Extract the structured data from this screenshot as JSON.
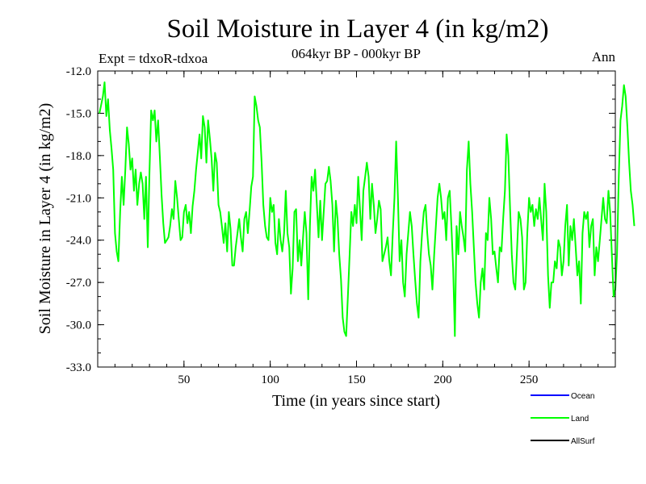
{
  "colors": {
    "background": "#ffffff",
    "axis": "#000000",
    "ocean": "#0000ff",
    "land": "#00ff00",
    "allsurf": "#000000"
  },
  "chart_data": {
    "type": "line",
    "title": "Soil Moisture in Layer 4 (in kg/m2)",
    "subtitle": "064kyr BP - 000kyr BP",
    "left_annotation": "Expt = tdxoR-tdxoa",
    "right_annotation": "Ann",
    "xlabel": "Time (in years since start)",
    "ylabel": "Soil Moisture in Layer 4 (in kg/m2)",
    "xlim": [
      0,
      300
    ],
    "ylim": [
      -33.0,
      -12.0
    ],
    "x_ticks": [
      50,
      100,
      150,
      200,
      250
    ],
    "y_ticks": [
      -12.0,
      -15.0,
      -18.0,
      -21.0,
      -24.0,
      -27.0,
      -30.0,
      -33.0
    ],
    "y_tick_labels": [
      "-12.0",
      "-15.0",
      "-18.0",
      "-21.0",
      "-24.0",
      "-27.0",
      "-30.0",
      "-33.0"
    ],
    "legend": [
      {
        "name": "Ocean",
        "color": "#0000ff"
      },
      {
        "name": "Land",
        "color": "#00ff00"
      },
      {
        "name": "AllSurf",
        "color": "#000000"
      }
    ],
    "series": [
      {
        "name": "Land",
        "color": "#00ff00",
        "x_start": 1,
        "x_step": 1,
        "y": [
          -15.0,
          -14.4,
          -13.8,
          -12.8,
          -15.2,
          -14.0,
          -16.2,
          -17.5,
          -19.0,
          -23.5,
          -24.8,
          -25.5,
          -22.0,
          -19.5,
          -21.5,
          -19.0,
          -16.0,
          -17.2,
          -19.0,
          -18.2,
          -20.5,
          -19.0,
          -21.5,
          -20.0,
          -19.2,
          -20.0,
          -22.5,
          -19.5,
          -24.5,
          -19.2,
          -14.8,
          -15.5,
          -14.8,
          -17.0,
          -15.5,
          -18.0,
          -20.8,
          -22.8,
          -24.2,
          -24.0,
          -23.8,
          -23.0,
          -21.8,
          -22.5,
          -19.8,
          -21.0,
          -22.5,
          -24.0,
          -23.8,
          -22.0,
          -21.5,
          -22.8,
          -22.0,
          -23.5,
          -21.6,
          -20.5,
          -19.0,
          -17.8,
          -16.5,
          -18.2,
          -15.2,
          -16.0,
          -18.5,
          -15.5,
          -16.8,
          -18.2,
          -20.5,
          -17.8,
          -18.5,
          -21.5,
          -22.0,
          -23.0,
          -24.2,
          -22.8,
          -24.8,
          -22.0,
          -23.2,
          -25.8,
          -25.8,
          -24.5,
          -23.5,
          -22.5,
          -23.8,
          -24.8,
          -22.5,
          -22.0,
          -23.5,
          -22.0,
          -20.2,
          -19.5,
          -13.8,
          -14.5,
          -15.5,
          -16.0,
          -18.5,
          -21.5,
          -23.0,
          -23.8,
          -24.0,
          -21.0,
          -22.0,
          -21.5,
          -24.2,
          -25.0,
          -22.5,
          -24.0,
          -24.8,
          -23.5,
          -20.5,
          -23.5,
          -24.5,
          -27.8,
          -26.0,
          -22.0,
          -21.8,
          -25.5,
          -24.0,
          -25.8,
          -23.8,
          -22.0,
          -23.5,
          -28.2,
          -23.0,
          -19.5,
          -20.5,
          -19.0,
          -21.5,
          -23.8,
          -21.2,
          -24.0,
          -22.0,
          -20.0,
          -19.8,
          -18.8,
          -19.8,
          -21.5,
          -24.8,
          -21.2,
          -22.5,
          -25.0,
          -26.8,
          -29.5,
          -30.5,
          -30.8,
          -28.0,
          -25.0,
          -22.0,
          -23.0,
          -21.5,
          -22.8,
          -19.5,
          -21.8,
          -24.0,
          -20.5,
          -19.5,
          -18.5,
          -19.5,
          -22.5,
          -20.0,
          -21.5,
          -23.5,
          -22.5,
          -21.2,
          -21.8,
          -25.5,
          -25.0,
          -24.5,
          -23.8,
          -25.5,
          -26.5,
          -23.5,
          -21.0,
          -17.0,
          -21.0,
          -25.5,
          -24.0,
          -27.0,
          -28.0,
          -25.0,
          -23.5,
          -22.0,
          -23.0,
          -25.0,
          -26.8,
          -28.5,
          -29.5,
          -25.5,
          -23.5,
          -22.0,
          -21.5,
          -23.5,
          -25.0,
          -25.8,
          -27.5,
          -25.0,
          -23.0,
          -21.0,
          -20.0,
          -21.0,
          -22.5,
          -22.0,
          -24.0,
          -21.0,
          -20.5,
          -23.0,
          -26.0,
          -30.8,
          -23.0,
          -25.0,
          -22.0,
          -23.0,
          -23.8,
          -24.8,
          -19.0,
          -17.0,
          -20.0,
          -22.0,
          -24.5,
          -27.0,
          -28.5,
          -29.5,
          -27.0,
          -26.0,
          -27.5,
          -23.5,
          -24.0,
          -21.0,
          -22.5,
          -25.0,
          -24.8,
          -26.0,
          -27.0,
          -24.5,
          -24.8,
          -22.5,
          -20.5,
          -16.5,
          -18.0,
          -21.8,
          -25.0,
          -27.0,
          -27.5,
          -24.8,
          -22.0,
          -22.5,
          -23.8,
          -27.5,
          -27.0,
          -23.5,
          -21.0,
          -22.0,
          -21.5,
          -23.0,
          -21.8,
          -22.5,
          -21.0,
          -22.5,
          -24.0,
          -20.0,
          -22.0,
          -26.5,
          -28.8,
          -27.0,
          -27.0,
          -25.5,
          -26.0,
          -24.0,
          -24.5,
          -26.5,
          -25.5,
          -23.0,
          -21.5,
          -25.8,
          -23.0,
          -24.0,
          -22.5,
          -24.5,
          -26.5,
          -25.5,
          -28.5,
          -23.5,
          -22.0,
          -22.5,
          -22.0,
          -24.5,
          -23.0,
          -22.5,
          -26.5,
          -24.5,
          -25.5,
          -24.0,
          -22.5,
          -21.0,
          -22.5,
          -22.8,
          -20.5,
          -22.0,
          -25.0,
          -28.0,
          -27.5,
          -25.0,
          -19.5,
          -15.5,
          -14.5,
          -13.0,
          -13.8,
          -16.0,
          -18.5,
          -20.5,
          -21.5,
          -23.0
        ]
      }
    ]
  }
}
